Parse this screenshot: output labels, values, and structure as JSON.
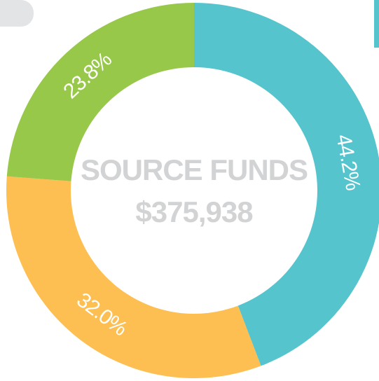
{
  "chart_data": {
    "type": "donut",
    "title": "SOURCE FUNDS",
    "subtitle": "$375,938",
    "categories": [
      null,
      null,
      null
    ],
    "values": [
      44.2,
      32.0,
      23.8
    ],
    "value_labels": [
      "44.2%",
      "32.0%",
      "23.8%"
    ],
    "colors": [
      "#55c4cd",
      "#fdbf52",
      "#97c84a"
    ]
  }
}
